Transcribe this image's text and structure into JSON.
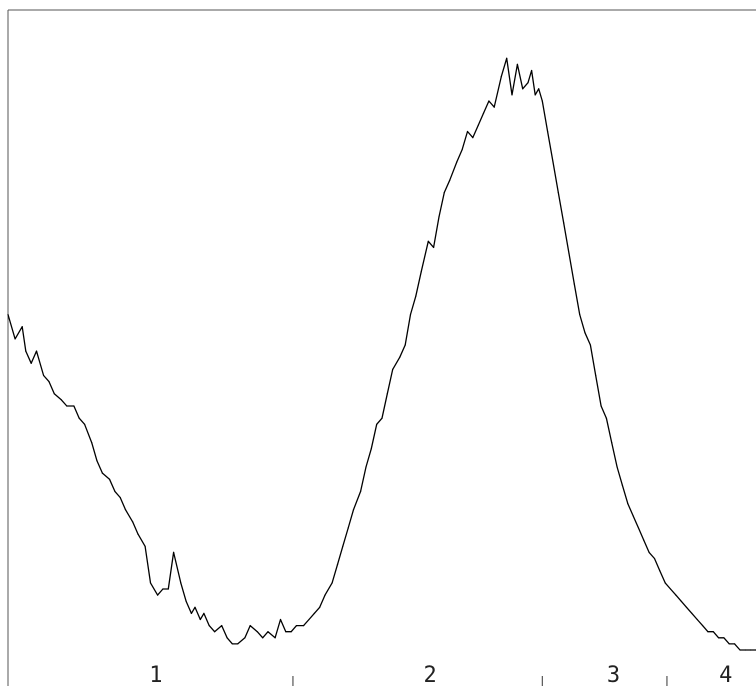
{
  "chart_data": {
    "type": "line",
    "title": "",
    "xlabel": "",
    "ylabel": "",
    "xlim": [
      0,
      4.2
    ],
    "ylim": [
      0,
      1
    ],
    "grid": false,
    "legend": "none",
    "x_tick_labels": [
      "1",
      "2",
      "3",
      "4"
    ],
    "x_tick_label_positions": [
      0.83,
      2.37,
      3.4,
      4.03
    ],
    "x_tick_marks": [
      1.6,
      3.0,
      3.7
    ],
    "series": [
      {
        "color": "#000000",
        "x": [
          0.0,
          0.04,
          0.08,
          0.1,
          0.13,
          0.16,
          0.2,
          0.23,
          0.26,
          0.3,
          0.33,
          0.37,
          0.4,
          0.43,
          0.47,
          0.5,
          0.53,
          0.57,
          0.6,
          0.63,
          0.66,
          0.7,
          0.73,
          0.77,
          0.8,
          0.84,
          0.87,
          0.9,
          0.93,
          0.97,
          1.0,
          1.03,
          1.05,
          1.08,
          1.1,
          1.13,
          1.16,
          1.2,
          1.23,
          1.26,
          1.29,
          1.33,
          1.36,
          1.4,
          1.43,
          1.46,
          1.5,
          1.53,
          1.56,
          1.59,
          1.62,
          1.66,
          1.69,
          1.72,
          1.75,
          1.78,
          1.82,
          1.85,
          1.88,
          1.91,
          1.94,
          1.98,
          2.01,
          2.04,
          2.07,
          2.1,
          2.13,
          2.16,
          2.2,
          2.23,
          2.26,
          2.29,
          2.32,
          2.36,
          2.39,
          2.42,
          2.45,
          2.48,
          2.52,
          2.55,
          2.58,
          2.61,
          2.64,
          2.67,
          2.7,
          2.73,
          2.77,
          2.8,
          2.83,
          2.86,
          2.89,
          2.92,
          2.94,
          2.96,
          2.98,
          3.0,
          3.03,
          3.06,
          3.09,
          3.12,
          3.15,
          3.18,
          3.21,
          3.24,
          3.27,
          3.3,
          3.33,
          3.36,
          3.39,
          3.42,
          3.45,
          3.48,
          3.51,
          3.54,
          3.57,
          3.6,
          3.63,
          3.66,
          3.69,
          3.72,
          3.75,
          3.78,
          3.81,
          3.84,
          3.87,
          3.9,
          3.93,
          3.96,
          3.99,
          4.02,
          4.05,
          4.08,
          4.11,
          4.14,
          4.17,
          4.2
        ],
        "values": [
          0.55,
          0.51,
          0.53,
          0.49,
          0.47,
          0.49,
          0.45,
          0.44,
          0.42,
          0.41,
          0.4,
          0.4,
          0.38,
          0.37,
          0.34,
          0.31,
          0.29,
          0.28,
          0.26,
          0.25,
          0.23,
          0.21,
          0.19,
          0.17,
          0.11,
          0.09,
          0.1,
          0.1,
          0.16,
          0.11,
          0.08,
          0.06,
          0.07,
          0.05,
          0.06,
          0.04,
          0.03,
          0.04,
          0.02,
          0.01,
          0.01,
          0.02,
          0.04,
          0.03,
          0.02,
          0.03,
          0.02,
          0.05,
          0.03,
          0.03,
          0.04,
          0.04,
          0.05,
          0.06,
          0.07,
          0.09,
          0.11,
          0.14,
          0.17,
          0.2,
          0.23,
          0.26,
          0.3,
          0.33,
          0.37,
          0.38,
          0.42,
          0.46,
          0.48,
          0.5,
          0.55,
          0.58,
          0.62,
          0.67,
          0.66,
          0.71,
          0.75,
          0.77,
          0.8,
          0.82,
          0.85,
          0.84,
          0.86,
          0.88,
          0.9,
          0.89,
          0.94,
          0.97,
          0.91,
          0.96,
          0.92,
          0.93,
          0.95,
          0.91,
          0.92,
          0.9,
          0.85,
          0.8,
          0.75,
          0.7,
          0.65,
          0.6,
          0.55,
          0.52,
          0.5,
          0.45,
          0.4,
          0.38,
          0.34,
          0.3,
          0.27,
          0.24,
          0.22,
          0.2,
          0.18,
          0.16,
          0.15,
          0.13,
          0.11,
          0.1,
          0.09,
          0.08,
          0.07,
          0.06,
          0.05,
          0.04,
          0.03,
          0.03,
          0.02,
          0.02,
          0.01,
          0.01,
          0.0,
          0.0,
          0.0,
          0.0
        ]
      }
    ]
  }
}
